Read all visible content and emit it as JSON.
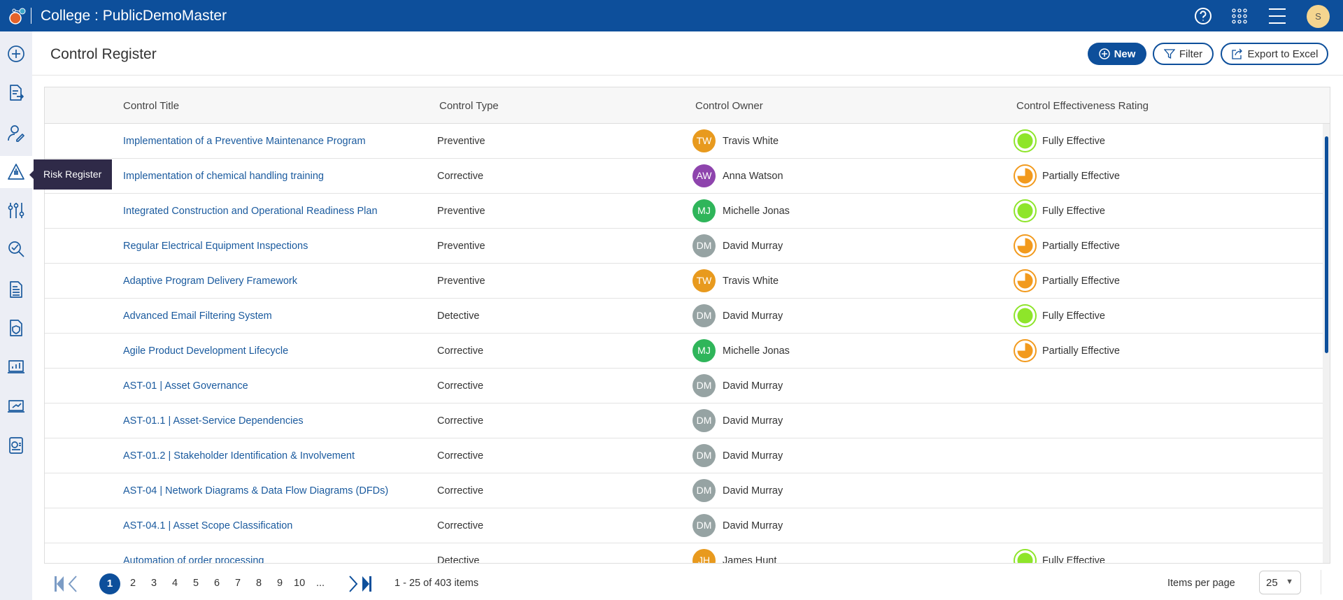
{
  "header": {
    "title": "College : PublicDemoMaster",
    "user_initial": "S",
    "icons": [
      "help-icon",
      "apps-grid-icon",
      "menu-icon"
    ]
  },
  "sidebar": {
    "icons": [
      "add-icon",
      "document-export-icon",
      "user-edit-icon",
      "risk-register-icon",
      "controls-sliders-icon",
      "audit-search-icon",
      "document-icon",
      "policy-shield-icon",
      "dashboard-chart-icon",
      "trend-report-icon",
      "report-pie-icon"
    ],
    "tooltip": "Risk Register"
  },
  "page": {
    "title": "Control Register"
  },
  "toolbar": {
    "new": "New",
    "filter": "Filter",
    "export": "Export to Excel"
  },
  "table": {
    "columns": [
      "Control Title",
      "Control Type",
      "Control Owner",
      "Control Effectiveness Rating"
    ],
    "rows": [
      {
        "title": "Implementation of a Preventive Maintenance Program",
        "type": "Preventive",
        "initials": "TW",
        "owner": "Travis White",
        "color": "#e89a1e",
        "rating": "Fully Effective"
      },
      {
        "title": "Implementation of chemical handling training",
        "type": "Corrective",
        "initials": "AW",
        "owner": "Anna Watson",
        "color": "#8e44ad",
        "rating": "Partially Effective"
      },
      {
        "title": "Integrated Construction and Operational Readiness Plan",
        "type": "Preventive",
        "initials": "MJ",
        "owner": "Michelle Jonas",
        "color": "#2fb55a",
        "rating": "Fully Effective"
      },
      {
        "title": "Regular Electrical Equipment Inspections",
        "type": "Preventive",
        "initials": "DM",
        "owner": "David Murray",
        "color": "#96a3a3",
        "rating": "Partially Effective"
      },
      {
        "title": "Adaptive Program Delivery Framework",
        "type": "Preventive",
        "initials": "TW",
        "owner": "Travis White",
        "color": "#e89a1e",
        "rating": "Partially Effective"
      },
      {
        "title": "Advanced Email Filtering System",
        "type": "Detective",
        "initials": "DM",
        "owner": "David Murray",
        "color": "#96a3a3",
        "rating": "Fully Effective"
      },
      {
        "title": "Agile Product Development Lifecycle",
        "type": "Corrective",
        "initials": "MJ",
        "owner": "Michelle Jonas",
        "color": "#2fb55a",
        "rating": "Partially Effective"
      },
      {
        "title": "AST-01 | Asset Governance",
        "type": "Corrective",
        "initials": "DM",
        "owner": "David Murray",
        "color": "#96a3a3",
        "rating": ""
      },
      {
        "title": "AST-01.1 | Asset-Service Dependencies",
        "type": "Corrective",
        "initials": "DM",
        "owner": "David Murray",
        "color": "#96a3a3",
        "rating": ""
      },
      {
        "title": "AST-01.2 | Stakeholder Identification & Involvement",
        "type": "Corrective",
        "initials": "DM",
        "owner": "David Murray",
        "color": "#96a3a3",
        "rating": ""
      },
      {
        "title": "AST-04 | Network Diagrams & Data Flow Diagrams (DFDs)",
        "type": "Corrective",
        "initials": "DM",
        "owner": "David Murray",
        "color": "#96a3a3",
        "rating": ""
      },
      {
        "title": "AST-04.1 | Asset Scope Classification",
        "type": "Corrective",
        "initials": "DM",
        "owner": "David Murray",
        "color": "#96a3a3",
        "rating": ""
      },
      {
        "title": "Automation of order processing",
        "type": "Detective",
        "initials": "JH",
        "owner": "James Hunt",
        "color": "#e89a1e",
        "rating": "Fully Effective"
      }
    ],
    "rating_colors": {
      "Fully Effective": "#8ee52a",
      "Partially Effective": "#f29a1d"
    }
  },
  "pagination": {
    "current": "1",
    "pages": [
      "2",
      "3",
      "4",
      "5",
      "6",
      "7",
      "8",
      "9",
      "10",
      "..."
    ],
    "summary": "1 - 25 of 403 items",
    "items_per_page_label": "Items per page",
    "items_per_page": "25"
  }
}
